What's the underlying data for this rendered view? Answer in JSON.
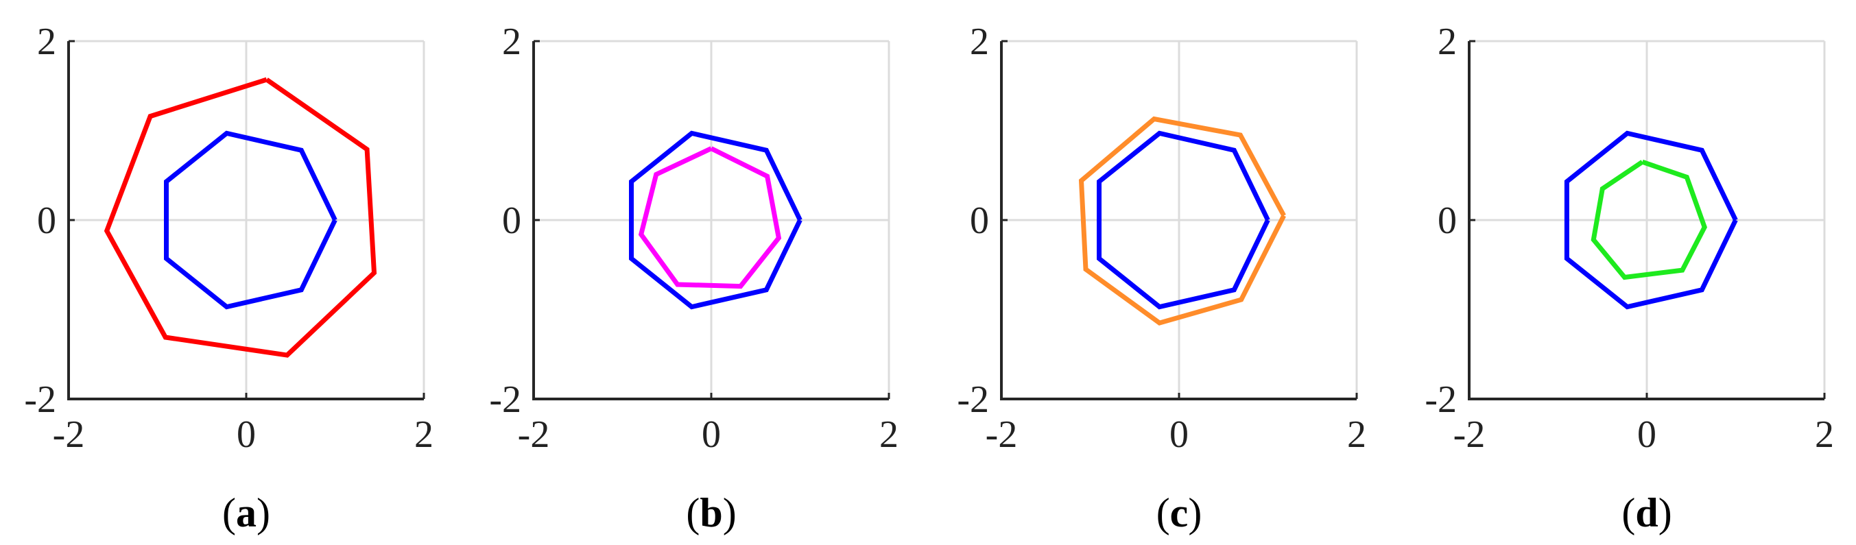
{
  "chart_data": [
    {
      "type": "line",
      "panel_label": {
        "open": "(",
        "letter": "a",
        "close": ")"
      },
      "xlim": [
        -2,
        2
      ],
      "ylim": [
        -2,
        2
      ],
      "xticks": [
        "-2",
        "0",
        "2"
      ],
      "yticks": [
        "-2",
        "0",
        "2"
      ],
      "grid": true,
      "series": [
        {
          "color": "#ff0000",
          "x": [
            0.23,
            1.36,
            1.44,
            0.46,
            -0.91,
            -1.57,
            -1.08,
            0.23
          ],
          "y": [
            1.57,
            0.79,
            -0.59,
            -1.51,
            -1.31,
            -0.12,
            1.16,
            1.57
          ]
        },
        {
          "color": "#0000ff",
          "x": [
            1.0,
            0.62,
            -0.22,
            -0.9,
            -0.9,
            -0.22,
            0.62,
            1.0
          ],
          "y": [
            0.0,
            0.78,
            0.97,
            0.43,
            -0.43,
            -0.97,
            -0.78,
            0.0
          ]
        }
      ]
    },
    {
      "type": "line",
      "panel_label": {
        "open": "(",
        "letter": "b",
        "close": ")"
      },
      "xlim": [
        -2,
        2
      ],
      "ylim": [
        -2,
        2
      ],
      "xticks": [
        "-2",
        "0",
        "2"
      ],
      "yticks": [
        "-2",
        "0",
        "2"
      ],
      "grid": true,
      "series": [
        {
          "color": "#0000ff",
          "x": [
            1.0,
            0.62,
            -0.22,
            -0.9,
            -0.9,
            -0.22,
            0.62,
            1.0
          ],
          "y": [
            0.0,
            0.78,
            0.97,
            0.43,
            -0.43,
            -0.97,
            -0.78,
            0.0
          ]
        },
        {
          "color": "#ff00ff",
          "x": [
            0.0,
            0.63,
            0.76,
            0.33,
            -0.38,
            -0.79,
            -0.62,
            0.0
          ],
          "y": [
            0.8,
            0.49,
            -0.2,
            -0.74,
            -0.72,
            -0.16,
            0.51,
            0.8
          ]
        }
      ]
    },
    {
      "type": "line",
      "panel_label": {
        "open": "(",
        "letter": "c",
        "close": ")"
      },
      "xlim": [
        -2,
        2
      ],
      "ylim": [
        -2,
        2
      ],
      "xticks": [
        "-2",
        "0",
        "2"
      ],
      "yticks": [
        "-2",
        "0",
        "2"
      ],
      "grid": true,
      "series": [
        {
          "color": "#ff8c2a",
          "x": [
            1.18,
            0.7,
            -0.22,
            -1.05,
            -1.1,
            -0.28,
            0.69,
            1.18
          ],
          "y": [
            0.05,
            -0.89,
            -1.15,
            -0.55,
            0.44,
            1.13,
            0.95,
            0.05
          ]
        },
        {
          "color": "#0000ff",
          "x": [
            1.0,
            0.62,
            -0.22,
            -0.9,
            -0.9,
            -0.22,
            0.62,
            1.0
          ],
          "y": [
            0.0,
            0.78,
            0.97,
            0.43,
            -0.43,
            -0.97,
            -0.78,
            0.0
          ]
        }
      ]
    },
    {
      "type": "line",
      "panel_label": {
        "open": "(",
        "letter": "d",
        "close": ")"
      },
      "xlim": [
        -2,
        2
      ],
      "ylim": [
        -2,
        2
      ],
      "xticks": [
        "-2",
        "0",
        "2"
      ],
      "yticks": [
        "-2",
        "0",
        "2"
      ],
      "grid": true,
      "series": [
        {
          "color": "#0000ff",
          "x": [
            1.0,
            0.62,
            -0.22,
            -0.9,
            -0.9,
            -0.22,
            0.62,
            1.0
          ],
          "y": [
            0.0,
            0.78,
            0.97,
            0.43,
            -0.43,
            -0.97,
            -0.78,
            0.0
          ]
        },
        {
          "color": "#1eea1e",
          "x": [
            -0.05,
            0.45,
            0.65,
            0.4,
            -0.25,
            -0.6,
            -0.5,
            -0.05
          ],
          "y": [
            0.65,
            0.48,
            -0.08,
            -0.56,
            -0.64,
            -0.22,
            0.35,
            0.65
          ]
        }
      ]
    }
  ]
}
